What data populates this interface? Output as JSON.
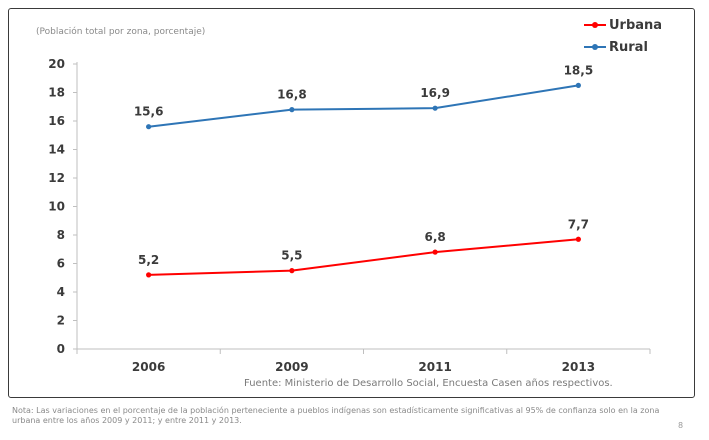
{
  "subtitle": "(Población total por zona, porcentaje)",
  "source": "Fuente: Ministerio de Desarrollo Social, Encuesta Casen años respectivos.",
  "note": "Nota: Las variaciones en el porcentaje de la población perteneciente a pueblos indígenas son estadísticamente significativas al 95% de confianza solo en la zona urbana entre los años 2009 y 2011; y entre 2011 y 2013.",
  "page_number": "8",
  "chart_data": {
    "type": "line",
    "title": "",
    "subtitle": "(Población total por zona, porcentaje)",
    "xlabel": "",
    "ylabel": "",
    "categories": [
      "2006",
      "2009",
      "2011",
      "2013"
    ],
    "series": [
      {
        "name": "Urbana",
        "color": "#ff0000",
        "values": [
          5.2,
          5.5,
          6.8,
          7.7
        ],
        "labels": [
          "5,2",
          "5,5",
          "6,8",
          "7,7"
        ]
      },
      {
        "name": "Rural",
        "color": "#2e75b6",
        "values": [
          15.6,
          16.8,
          16.9,
          18.5
        ],
        "labels": [
          "15,6",
          "16,8",
          "16,9",
          "18,5"
        ]
      }
    ],
    "yticks": [
      0,
      2,
      4,
      6,
      8,
      10,
      12,
      14,
      16,
      18,
      20
    ],
    "ylim": [
      0,
      20
    ],
    "grid": false,
    "legend_position": "top-right"
  }
}
